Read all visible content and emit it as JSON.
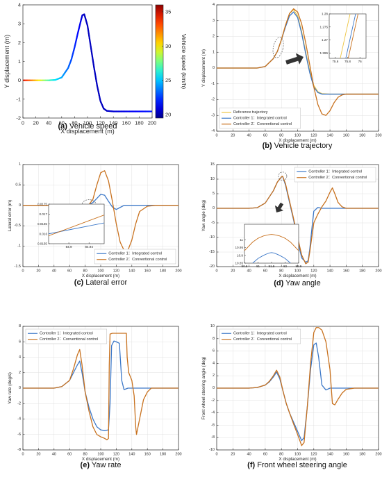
{
  "colors": {
    "reference": "#edc542",
    "controller1": "#3c78c8",
    "controller2": "#c8711e",
    "axis": "#262626",
    "grid": "#e0e0e0"
  },
  "chart_data": [
    {
      "id": "a",
      "type": "line",
      "caption_letter": "(a)",
      "caption_text": "Vehicle speed",
      "xlabel": "X displacement (m)",
      "ylabel": "Y displacement (m)",
      "xlim": [
        0,
        200
      ],
      "ylim": [
        -2,
        4
      ],
      "xticks": [
        0,
        20,
        40,
        60,
        80,
        100,
        120,
        140,
        160,
        180,
        200
      ],
      "yticks": [
        -2,
        -1,
        0,
        1,
        2,
        3,
        4
      ],
      "grid": false,
      "series": [
        {
          "values_y": "trajectory",
          "x": [
            0,
            20,
            40,
            50,
            60,
            70,
            75,
            80,
            85,
            90,
            92,
            95,
            100,
            105,
            110,
            115,
            120,
            125,
            130,
            140,
            160,
            200
          ],
          "y": [
            0,
            0,
            0,
            0.02,
            0.15,
            0.65,
            1.1,
            1.75,
            2.5,
            3.2,
            3.45,
            3.5,
            2.9,
            1.8,
            0.7,
            -0.3,
            -1.1,
            -1.5,
            -1.62,
            -1.65,
            -1.65,
            -1.65
          ]
        }
      ],
      "colorbar": {
        "label": "Vehicle speed (km/h)",
        "min": 19.5,
        "max": 36,
        "ticks": [
          20,
          25,
          30,
          35
        ]
      }
    },
    {
      "id": "b",
      "type": "line",
      "caption_letter": "(b)",
      "caption_text": "Vehicle trajectory",
      "xlabel": "X displacement (m)",
      "ylabel": "Y displacement (m)",
      "xlim": [
        0,
        200
      ],
      "ylim": [
        -4,
        4
      ],
      "xticks": [
        0,
        20,
        40,
        60,
        80,
        100,
        120,
        140,
        160,
        180,
        200
      ],
      "yticks": [
        -4,
        -3,
        -2,
        -1,
        0,
        1,
        2,
        3,
        4
      ],
      "grid": true,
      "legend_position": "bottom-left",
      "series": [
        {
          "name": "Reference trajectory",
          "color_key": "reference",
          "x": [
            0,
            50,
            60,
            70,
            75,
            80,
            85,
            90,
            95,
            100,
            105,
            110,
            115,
            120,
            125,
            130,
            140,
            200
          ],
          "y": [
            0,
            0,
            0.1,
            0.6,
            1.05,
            1.8,
            2.7,
            3.45,
            3.7,
            3.3,
            2.3,
            1.0,
            -0.2,
            -1.1,
            -1.5,
            -1.62,
            -1.65,
            -1.65
          ]
        },
        {
          "name": "Controller 1：Integrated control",
          "color_key": "controller1",
          "x": [
            0,
            50,
            60,
            70,
            75,
            80,
            85,
            90,
            95,
            100,
            105,
            110,
            115,
            120,
            125,
            130,
            140,
            200
          ],
          "y": [
            0,
            0,
            0.1,
            0.6,
            1.05,
            1.8,
            2.6,
            3.3,
            3.55,
            3.2,
            2.2,
            0.9,
            -0.3,
            -1.2,
            -1.55,
            -1.65,
            -1.65,
            -1.65
          ]
        },
        {
          "name": "Controller 2：Conventional control",
          "color_key": "controller2",
          "x": [
            0,
            50,
            60,
            70,
            75,
            80,
            85,
            90,
            95,
            100,
            105,
            110,
            115,
            120,
            125,
            130,
            135,
            140,
            145,
            150,
            155,
            160,
            200
          ],
          "y": [
            0,
            0,
            0.1,
            0.6,
            1.05,
            1.8,
            2.7,
            3.45,
            3.75,
            3.55,
            2.8,
            1.6,
            0.2,
            -1.2,
            -2.3,
            -2.9,
            -3.0,
            -2.7,
            -2.2,
            -1.85,
            -1.7,
            -1.65,
            -1.65
          ]
        }
      ],
      "inset": {
        "xlim": [
          75.5,
          76.1
        ],
        "ylim": [
          1.263,
          1.28
        ],
        "xticks": [
          75.6,
          75.8,
          76
        ],
        "yticks": [
          1.265,
          1.27,
          1.275,
          1.28
        ],
        "series": [
          {
            "color_key": "reference",
            "x": [
              75.68,
              75.84
            ],
            "y": [
              1.263,
              1.28
            ]
          },
          {
            "color_key": "controller1",
            "x": [
              75.77,
              75.93
            ],
            "y": [
              1.263,
              1.28
            ]
          },
          {
            "color_key": "controller2",
            "x": [
              75.81,
              75.97
            ],
            "y": [
              1.263,
              1.28
            ]
          }
        ]
      }
    },
    {
      "id": "c",
      "type": "line",
      "caption_letter": "(c)",
      "caption_text": "Lateral error",
      "xlabel": "X displacement (m)",
      "ylabel": "Lateral error (m)",
      "xlim": [
        0,
        200
      ],
      "ylim": [
        -1.5,
        1
      ],
      "xticks": [
        0,
        20,
        40,
        60,
        80,
        100,
        120,
        140,
        160,
        180,
        200
      ],
      "yticks": [
        -1.5,
        -1,
        -0.5,
        0,
        0.5,
        1
      ],
      "grid": true,
      "legend_position": "bottom-right",
      "series": [
        {
          "name": "Controller 1：Integrated control",
          "color_key": "controller1",
          "x": [
            0,
            60,
            70,
            75,
            80,
            85,
            90,
            95,
            100,
            105,
            110,
            115,
            120,
            125,
            130,
            140,
            200
          ],
          "y": [
            0,
            0,
            0,
            0.005,
            0.015,
            0.02,
            0.07,
            0.17,
            0.27,
            0.25,
            0.1,
            -0.04,
            -0.1,
            -0.05,
            0,
            0,
            0
          ]
        },
        {
          "name": "Controller 2：Conventional control",
          "color_key": "controller2",
          "x": [
            0,
            60,
            70,
            75,
            80,
            85,
            90,
            95,
            100,
            105,
            110,
            115,
            120,
            125,
            130,
            135,
            140,
            145,
            150,
            160,
            170,
            200
          ],
          "y": [
            0,
            0,
            -0.01,
            -0.01,
            0.01,
            0.02,
            0.15,
            0.5,
            0.8,
            0.85,
            0.6,
            0.1,
            -0.45,
            -0.9,
            -1.1,
            -1.1,
            -0.85,
            -0.45,
            -0.15,
            -0.02,
            0,
            0
          ]
        }
      ],
      "inset": {
        "xlim": [
          84.86,
          84.97
        ],
        "ylim": [
          0.0155,
          0.0175
        ],
        "xticks": [
          84.9,
          84.94
        ],
        "yticks": [
          0.0155,
          0.016,
          0.0165,
          0.017,
          0.0175
        ],
        "series": [
          {
            "color_key": "controller1",
            "x": [
              84.86,
              84.97
            ],
            "y": [
              0.016,
              0.01655
            ]
          },
          {
            "color_key": "controller2",
            "x": [
              84.86,
              84.97
            ],
            "y": [
              0.0159,
              0.01695
            ]
          }
        ]
      }
    },
    {
      "id": "d",
      "type": "line",
      "caption_letter": "(d)",
      "caption_text": "Yaw angle",
      "xlabel": "X displacement (m)",
      "ylabel": "Yaw angle (deg)",
      "xlim": [
        0,
        200
      ],
      "ylim": [
        -20,
        15
      ],
      "xticks": [
        0,
        20,
        40,
        60,
        80,
        100,
        120,
        140,
        160,
        180,
        200
      ],
      "yticks": [
        -20,
        -15,
        -10,
        -5,
        0,
        5,
        10,
        15
      ],
      "grid": true,
      "legend_position": "top-right",
      "series": [
        {
          "name": "Controller 1：Integrated control",
          "color_key": "controller1",
          "x": [
            0,
            40,
            50,
            60,
            70,
            75,
            80,
            81.5,
            85,
            90,
            95,
            100,
            105,
            110,
            113,
            115,
            118,
            120,
            125,
            130,
            200
          ],
          "y": [
            0,
            0,
            0.2,
            1.8,
            6,
            9,
            10.7,
            10.9,
            8,
            2,
            -4,
            -11,
            -17,
            -18.5,
            -18,
            -14,
            -6,
            -1,
            0.3,
            0,
            0
          ]
        },
        {
          "name": "Controller 2：Conventional control",
          "color_key": "controller2",
          "x": [
            0,
            40,
            50,
            60,
            70,
            75,
            80,
            81.5,
            85,
            90,
            95,
            100,
            105,
            110,
            113,
            115,
            118,
            120,
            125,
            130,
            135,
            140,
            143,
            146,
            150,
            155,
            160,
            200
          ],
          "y": [
            0,
            0,
            0.2,
            1.8,
            6,
            9,
            10.8,
            11,
            8.5,
            2.5,
            -3.5,
            -10,
            -16,
            -19,
            -18.5,
            -15,
            -9,
            -5,
            -2,
            0.5,
            2.5,
            5.5,
            7,
            5,
            2,
            0.5,
            0,
            0
          ]
        }
      ],
      "inset": {
        "xlim": [
          80.5,
          82.5
        ],
        "ylim": [
          10.85,
          11.1
        ],
        "xticks": [
          80.5,
          81,
          81.5,
          82,
          82.5
        ],
        "yticks": [
          10.85,
          10.9,
          10.95,
          11
        ],
        "series": [
          {
            "color_key": "controller1",
            "x": [
              80.8,
              81.0,
              81.2,
              81.4,
              81.5,
              81.6,
              81.8,
              82.0,
              82.2
            ],
            "y": [
              10.85,
              10.88,
              10.9,
              10.915,
              10.918,
              10.915,
              10.9,
              10.88,
              10.85
            ]
          },
          {
            "color_key": "controller2",
            "x": [
              80.5,
              80.8,
              81.0,
              81.2,
              81.4,
              81.5,
              81.6,
              81.8,
              82.0,
              82.2,
              82.5
            ],
            "y": [
              10.93,
              10.985,
              11.01,
              11.025,
              11.033,
              11.035,
              11.033,
              11.025,
              11.01,
              10.985,
              10.93
            ]
          }
        ]
      }
    },
    {
      "id": "e",
      "type": "line",
      "caption_letter": "(e)",
      "caption_text": "Yaw rate",
      "xlabel": "X displacement (m)",
      "ylabel": "Yaw rate (deg/s)",
      "xlim": [
        0,
        200
      ],
      "ylim": [
        -8,
        8
      ],
      "xticks": [
        0,
        20,
        40,
        60,
        80,
        100,
        120,
        140,
        160,
        180,
        200
      ],
      "yticks": [
        -8,
        -6,
        -4,
        -2,
        0,
        2,
        4,
        6,
        8
      ],
      "grid": true,
      "legend_position": "top-left",
      "series": [
        {
          "name": "Controller 1：Integrated control",
          "color_key": "controller1",
          "x": [
            0,
            40,
            50,
            60,
            65,
            70,
            73,
            76,
            80,
            85,
            90,
            95,
            100,
            105,
            110,
            112,
            114,
            117,
            120,
            124,
            127,
            130,
            135,
            140,
            150,
            200
          ],
          "y": [
            0,
            0,
            0.2,
            1,
            2,
            3,
            3.5,
            2,
            -0.5,
            -2.5,
            -4,
            -5,
            -5.4,
            -5.5,
            -5.4,
            -2,
            5.5,
            6.1,
            6,
            5.8,
            1,
            -0.2,
            0,
            0,
            0,
            0
          ]
        },
        {
          "name": "Controller 2：Conventional control",
          "color_key": "controller2",
          "x": [
            0,
            40,
            50,
            60,
            65,
            70,
            73,
            76,
            80,
            85,
            90,
            95,
            100,
            105,
            108,
            110,
            111,
            112,
            115,
            120,
            125,
            130,
            133,
            134,
            136,
            140,
            143,
            145,
            146,
            148,
            150,
            155,
            160,
            165,
            200
          ],
          "y": [
            0,
            0,
            0.2,
            1,
            2.5,
            4.3,
            5,
            3,
            -0.5,
            -3,
            -5,
            -6,
            -6.3,
            -6.5,
            -6.7,
            -6.5,
            3,
            7,
            7.1,
            7.1,
            7.1,
            7.1,
            7.1,
            4,
            2,
            1,
            -1,
            -5,
            -6,
            -5,
            -4,
            -1.5,
            -0.5,
            0,
            0
          ]
        }
      ]
    },
    {
      "id": "f",
      "type": "line",
      "caption_letter": "(f)",
      "caption_text": "Front wheel steering angle",
      "xlabel": "X displacement (m)",
      "ylabel": "Front wheel steering angle (deg)",
      "xlim": [
        0,
        200
      ],
      "ylim": [
        -10,
        10
      ],
      "xticks": [
        0,
        20,
        40,
        60,
        80,
        100,
        120,
        140,
        160,
        180,
        200
      ],
      "yticks": [
        -10,
        -8,
        -6,
        -4,
        -2,
        0,
        2,
        4,
        6,
        8,
        10
      ],
      "grid": true,
      "legend_position": "top-left",
      "series": [
        {
          "name": "Controller 1：Integrated control",
          "color_key": "controller1",
          "x": [
            0,
            40,
            50,
            60,
            65,
            70,
            74,
            78,
            82,
            86,
            90,
            95,
            100,
            105,
            108,
            112,
            116,
            120,
            123,
            126,
            130,
            135,
            140,
            150,
            200
          ],
          "y": [
            0,
            0,
            0.1,
            0.5,
            1,
            1.8,
            2.6,
            1.5,
            -0.5,
            -2.5,
            -4,
            -5.5,
            -7,
            -8.5,
            -8,
            -3,
            3,
            7,
            7.3,
            5,
            0.5,
            -0.3,
            0,
            0,
            0
          ]
        },
        {
          "name": "Controller 2：Conventional control",
          "color_key": "controller2",
          "x": [
            0,
            40,
            50,
            60,
            65,
            70,
            74,
            78,
            82,
            86,
            90,
            95,
            100,
            105,
            108,
            112,
            116,
            120,
            123,
            126,
            130,
            135,
            140,
            143,
            146,
            150,
            155,
            160,
            170,
            200
          ],
          "y": [
            0,
            0,
            0.1,
            0.5,
            1.1,
            2,
            2.9,
            1.8,
            -0.5,
            -2.5,
            -4,
            -5.8,
            -7.5,
            -9.3,
            -8.8,
            -3,
            4,
            9,
            9.8,
            9.8,
            9.4,
            7.5,
            3,
            -2.5,
            -2.7,
            -1.8,
            -0.8,
            -0.2,
            0,
            0
          ]
        }
      ]
    }
  ]
}
